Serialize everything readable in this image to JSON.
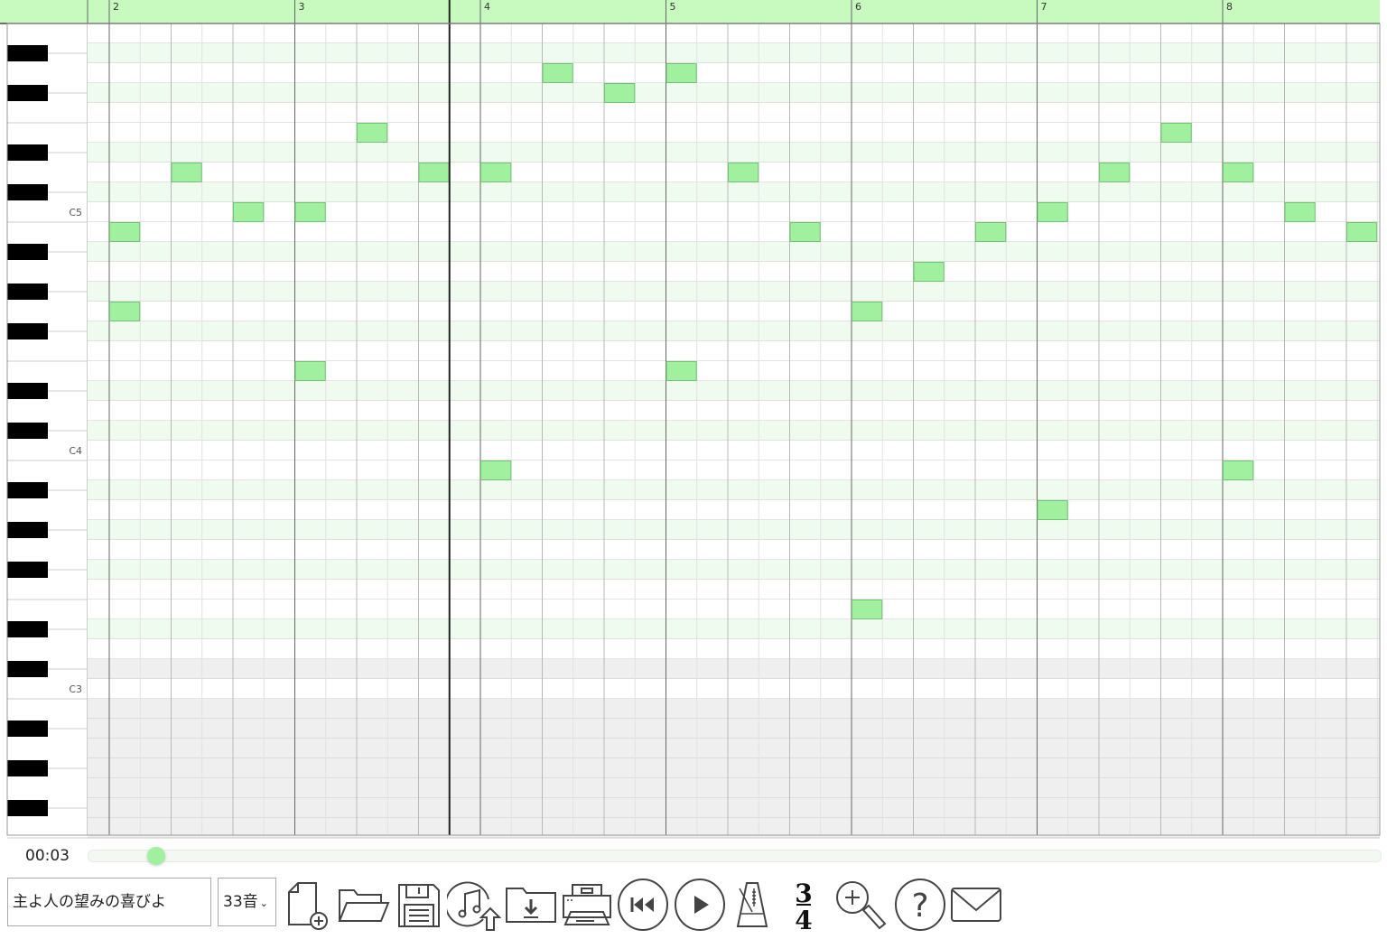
{
  "colors": {
    "header": "#c8fac0",
    "note_fill": "#a0f0a0",
    "note_border": "#74c274",
    "black_row": "#f0fbef",
    "out_of_range": "#efefef",
    "slider_thumb": "#a0f0a0"
  },
  "ruler": {
    "measures": [
      "2",
      "3",
      "4",
      "5",
      "6",
      "7",
      "8"
    ]
  },
  "keyboard": {
    "octave_labels": [
      {
        "label": "C5",
        "pitch": "C5"
      },
      {
        "label": "C4",
        "pitch": "C4"
      },
      {
        "label": "C3",
        "pitch": "C3"
      }
    ],
    "top_pitch": "A5",
    "lowest_in_range": "C3"
  },
  "time_signature": {
    "numerator": 3,
    "denominator": 4
  },
  "notes": [
    {
      "measure": 2,
      "beat": 1,
      "pitch": "B4"
    },
    {
      "measure": 2,
      "beat": 1,
      "pitch": "G4"
    },
    {
      "measure": 2,
      "beat": 2,
      "pitch": "D5"
    },
    {
      "measure": 2,
      "beat": 3,
      "pitch": "C5"
    },
    {
      "measure": 3,
      "beat": 1,
      "pitch": "C5"
    },
    {
      "measure": 3,
      "beat": 1,
      "pitch": "E4"
    },
    {
      "measure": 3,
      "beat": 2,
      "pitch": "E5"
    },
    {
      "measure": 3,
      "beat": 3,
      "pitch": "D5"
    },
    {
      "measure": 4,
      "beat": 1,
      "pitch": "D5"
    },
    {
      "measure": 4,
      "beat": 1,
      "pitch": "B3"
    },
    {
      "measure": 4,
      "beat": 2,
      "pitch": "G5"
    },
    {
      "measure": 4,
      "beat": 3,
      "pitch": "F#5"
    },
    {
      "measure": 5,
      "beat": 1,
      "pitch": "G5"
    },
    {
      "measure": 5,
      "beat": 1,
      "pitch": "E4"
    },
    {
      "measure": 5,
      "beat": 2,
      "pitch": "D5"
    },
    {
      "measure": 5,
      "beat": 3,
      "pitch": "B4"
    },
    {
      "measure": 6,
      "beat": 1,
      "pitch": "G4"
    },
    {
      "measure": 6,
      "beat": 1,
      "pitch": "E3"
    },
    {
      "measure": 6,
      "beat": 2,
      "pitch": "A4"
    },
    {
      "measure": 6,
      "beat": 3,
      "pitch": "B4"
    },
    {
      "measure": 7,
      "beat": 1,
      "pitch": "C5"
    },
    {
      "measure": 7,
      "beat": 1,
      "pitch": "A3"
    },
    {
      "measure": 7,
      "beat": 2,
      "pitch": "D5"
    },
    {
      "measure": 7,
      "beat": 3,
      "pitch": "E5"
    },
    {
      "measure": 8,
      "beat": 1,
      "pitch": "D5"
    },
    {
      "measure": 8,
      "beat": 1,
      "pitch": "B3"
    },
    {
      "measure": 8,
      "beat": 2,
      "pitch": "C5"
    },
    {
      "measure": 8,
      "beat": 3,
      "pitch": "B4"
    }
  ],
  "playhead": {
    "measure": 3,
    "beat": 3.5
  },
  "player": {
    "time": "00:03",
    "progress": 0.053
  },
  "toolbar": {
    "title_value": "主よ人の望みの喜びよ",
    "voice_count": "33音",
    "icons": [
      "new-file-icon",
      "open-folder-icon",
      "save-icon",
      "import-music-icon",
      "download-icon",
      "print-icon",
      "rewind-icon",
      "play-icon",
      "metronome-icon",
      "time-signature-icon",
      "zoom-in-icon",
      "help-icon",
      "mail-icon"
    ]
  }
}
